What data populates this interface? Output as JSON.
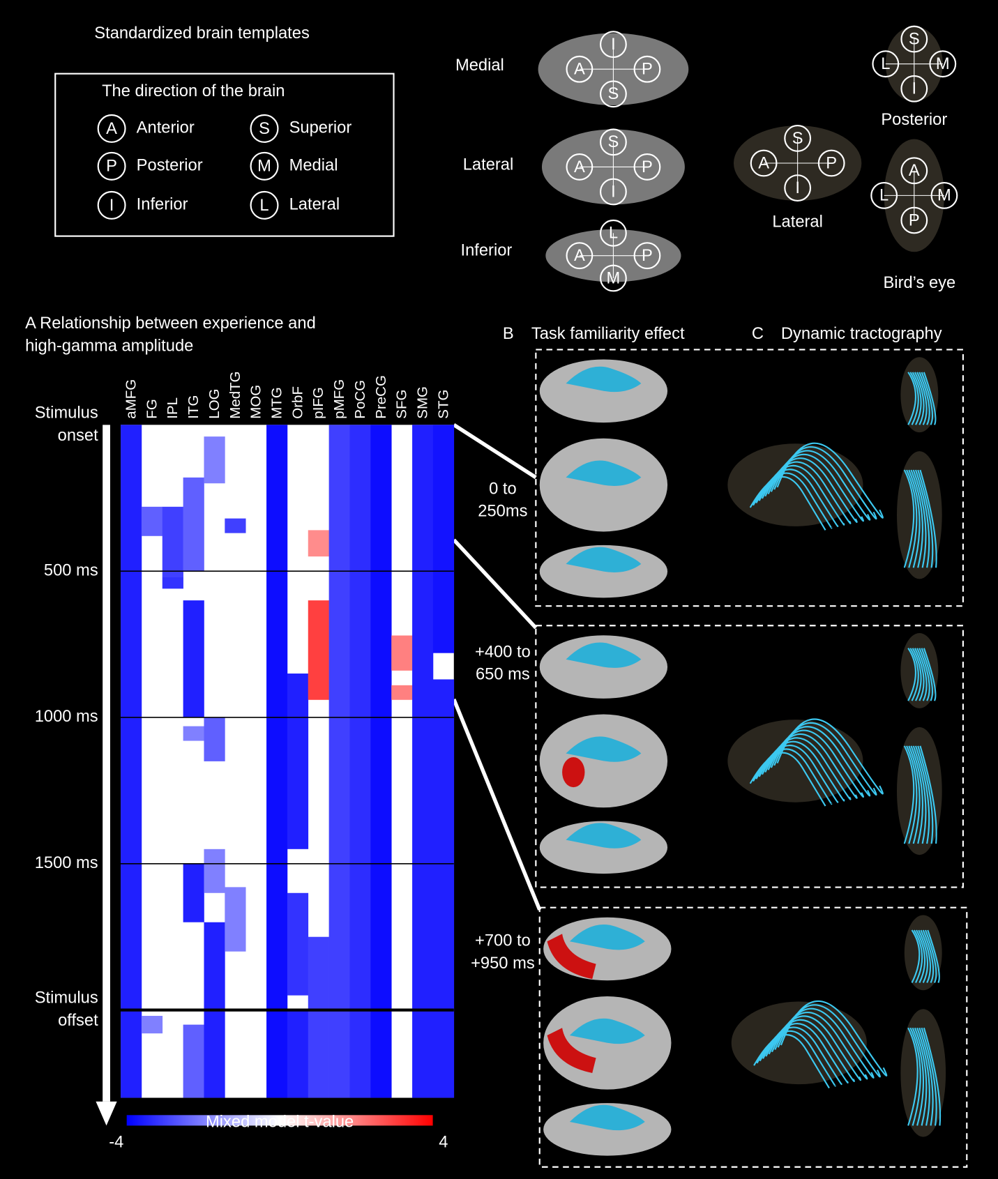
{
  "templates": {
    "title": "Standardized brain templates",
    "legend_title": "The direction of the brain",
    "legend": [
      {
        "letter": "A",
        "name": "Anterior"
      },
      {
        "letter": "S",
        "name": "Superior"
      },
      {
        "letter": "P",
        "name": "Posterior"
      },
      {
        "letter": "M",
        "name": "Medial"
      },
      {
        "letter": "I",
        "name": "Inferior"
      },
      {
        "letter": "L",
        "name": "Lateral"
      }
    ],
    "views": [
      {
        "label": "Medial",
        "dirs": [
          "I",
          "A",
          "P",
          "S"
        ]
      },
      {
        "label": "Lateral",
        "dirs": [
          "S",
          "A",
          "P",
          "I"
        ]
      },
      {
        "label": "Inferior",
        "dirs": [
          "L",
          "A",
          "P",
          "M"
        ]
      },
      {
        "label": "Lateral",
        "dirs": [
          "S",
          "A",
          "P",
          "I"
        ]
      },
      {
        "label": "Posterior",
        "dirs": [
          "S",
          "L",
          "M",
          "I"
        ]
      },
      {
        "label": "Bird’s eye",
        "dirs": [
          "A",
          "L",
          "M",
          "P"
        ]
      }
    ]
  },
  "panel_a": {
    "title_lines": [
      "A Relationship between experience and",
      "high-gamma amplitude"
    ],
    "regions": [
      "aMFG",
      "FG",
      "IPL",
      "ITG",
      "LOG",
      "MedTG",
      "MOG",
      "MTG",
      "OrbF",
      "pIFG",
      "pMFG",
      "PoCG",
      "PreCG",
      "SFG",
      "SMG",
      "STG"
    ],
    "time_range": [
      0,
      2300
    ],
    "time_marks": [
      {
        "value": 0,
        "lines": [
          "Stimulus",
          "onset"
        ]
      },
      {
        "value": 500,
        "lines": [
          "500 ms"
        ]
      },
      {
        "value": 1000,
        "lines": [
          "1000 ms"
        ]
      },
      {
        "value": 1500,
        "lines": [
          "1500 ms"
        ]
      },
      {
        "value": 2000,
        "lines": [
          "Stimulus",
          "offset"
        ]
      }
    ],
    "segments": [
      [
        {
          "from": 0,
          "to": 2300,
          "t": -3.5
        }
      ],
      [
        {
          "from": 280,
          "to": 380,
          "t": -2.5
        },
        {
          "from": 2020,
          "to": 2080,
          "t": -2
        }
      ],
      [
        {
          "from": 280,
          "to": 520,
          "t": -3
        },
        {
          "from": 520,
          "to": 560,
          "t": -3.2
        }
      ],
      [
        {
          "from": 180,
          "to": 500,
          "t": -2.5
        },
        {
          "from": 600,
          "to": 1000,
          "t": -3.5
        },
        {
          "from": 1030,
          "to": 1080,
          "t": -2
        },
        {
          "from": 1500,
          "to": 1700,
          "t": -3.5
        },
        {
          "from": 2050,
          "to": 2300,
          "t": -2.5
        }
      ],
      [
        {
          "from": 40,
          "to": 200,
          "t": -2
        },
        {
          "from": 1000,
          "to": 1150,
          "t": -2.5
        },
        {
          "from": 1450,
          "to": 1600,
          "t": -2
        },
        {
          "from": 1700,
          "to": 2300,
          "t": -3.5
        }
      ],
      [
        {
          "from": 320,
          "to": 370,
          "t": -3
        },
        {
          "from": 1580,
          "to": 1800,
          "t": -2
        }
      ],
      [],
      [
        {
          "from": 0,
          "to": 2300,
          "t": -3.8
        }
      ],
      [
        {
          "from": 850,
          "to": 1450,
          "t": -3.5
        },
        {
          "from": 1600,
          "to": 1950,
          "t": -3.2
        },
        {
          "from": 2000,
          "to": 2300,
          "t": -3.5
        }
      ],
      [
        {
          "from": 360,
          "to": 450,
          "t": 1.8
        },
        {
          "from": 600,
          "to": 940,
          "t": 3
        },
        {
          "from": 1750,
          "to": 2300,
          "t": -3
        }
      ],
      [
        {
          "from": 0,
          "to": 2300,
          "t": -3
        }
      ],
      [
        {
          "from": 0,
          "to": 2300,
          "t": -3.3
        }
      ],
      [
        {
          "from": 0,
          "to": 2300,
          "t": -3.8
        }
      ],
      [
        {
          "from": 720,
          "to": 840,
          "t": 2
        },
        {
          "from": 890,
          "to": 940,
          "t": 2
        }
      ],
      [
        {
          "from": 0,
          "to": 2300,
          "t": -3.5
        }
      ],
      [
        {
          "from": 0,
          "to": 780,
          "t": -3.7
        },
        {
          "from": 870,
          "to": 2300,
          "t": -3.5
        }
      ]
    ],
    "colorbar": {
      "title": "Mixed model t-value",
      "lim": [
        -4,
        4
      ],
      "ticks": [
        -4,
        4
      ]
    }
  },
  "panel_bc": {
    "b_letter": "B",
    "b_title": "Task familiarity effect",
    "c_letter": "C",
    "c_title": "Dynamic tractography",
    "windows": [
      [
        "0 to",
        "250ms"
      ],
      [
        "+400 to",
        "650 ms"
      ],
      [
        "+700 to",
        "+950 ms"
      ]
    ]
  }
}
